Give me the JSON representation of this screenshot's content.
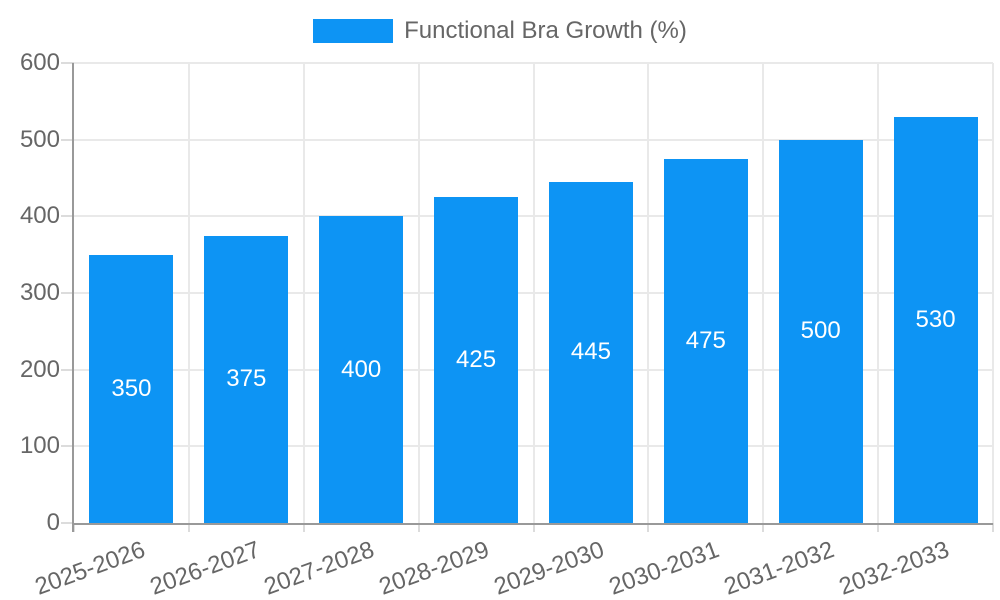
{
  "chart_data": {
    "type": "bar",
    "title": "Functional Bra Growth (%)",
    "categories": [
      "2025-2026",
      "2026-2027",
      "2027-2028",
      "2028-2029",
      "2029-2030",
      "2030-2031",
      "2031-2032",
      "2032-2033"
    ],
    "series": [
      {
        "name": "Functional Bra Growth (%)",
        "values": [
          350,
          375,
          400,
          425,
          445,
          475,
          500,
          530
        ]
      }
    ],
    "xlabel": "",
    "ylabel": "",
    "ylim": [
      0,
      600
    ],
    "yticks": [
      0,
      100,
      200,
      300,
      400,
      500,
      600
    ],
    "grid": true,
    "legend_position": "top",
    "x_label_rotation_deg": -20,
    "bar_color": "#0d94f4",
    "bar_label_color": "#ffffff",
    "axis_text_color": "#666666",
    "axis_line_color": "#999999",
    "grid_color": "#e9e9e9",
    "tick_mark_color": "#dcdcdc",
    "background_color": "#ffffff"
  },
  "legend": {
    "label": "Functional Bra Growth (%)",
    "swatch_color": "#0d94f4"
  }
}
